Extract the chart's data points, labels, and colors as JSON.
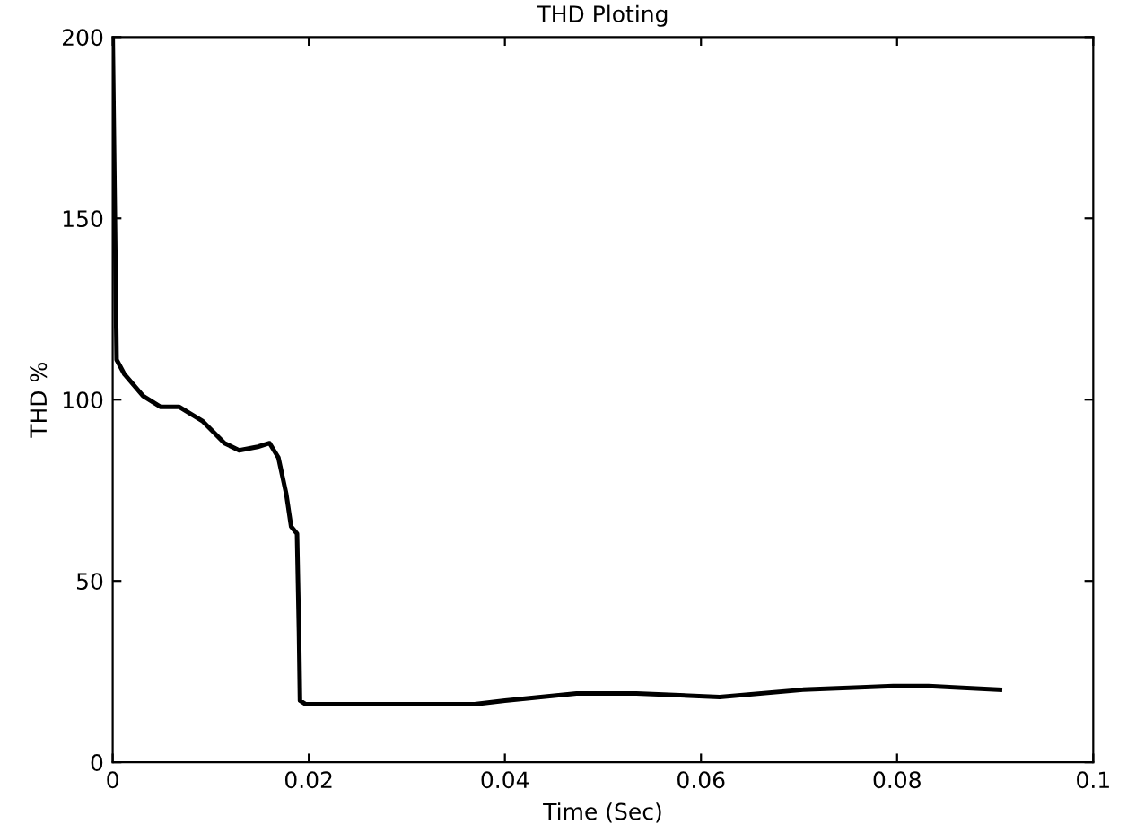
{
  "chart_data": {
    "type": "line",
    "title": "THD Ploting",
    "xlabel": "Time (Sec)",
    "ylabel": "THD %",
    "xlim": [
      0,
      0.1
    ],
    "ylim": [
      0,
      200
    ],
    "xticks": [
      0,
      0.02,
      0.04,
      0.06,
      0.08,
      0.1
    ],
    "yticks": [
      0,
      50,
      100,
      150,
      200
    ],
    "grid": false,
    "legend": false,
    "marker": "none",
    "line_style": "solid",
    "series": [
      {
        "color": "#000000",
        "x": [
          0,
          0.0004,
          0.0012,
          0.0031,
          0.0049,
          0.0068,
          0.0092,
          0.0114,
          0.0129,
          0.0148,
          0.016,
          0.0169,
          0.0177,
          0.0182,
          0.0188,
          0.019,
          0.0191,
          0.0197,
          0.026,
          0.0296,
          0.0369,
          0.04,
          0.0473,
          0.0534,
          0.0619,
          0.0704,
          0.0796,
          0.0832,
          0.0905
        ],
        "values": [
          200,
          111,
          107,
          101,
          98,
          98,
          94,
          88,
          86,
          87,
          88,
          84,
          74,
          65,
          63,
          36,
          17,
          16,
          16,
          16,
          16,
          17,
          19,
          19,
          18,
          20,
          21,
          21,
          20
        ]
      }
    ]
  }
}
